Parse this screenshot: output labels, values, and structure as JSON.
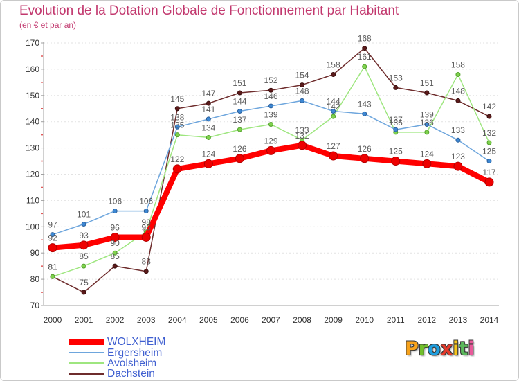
{
  "chart_data": {
    "type": "line",
    "title": "Evolution de la Dotation Globale de Fonctionnement par Habitant",
    "subtitle": "(en € et par an)",
    "categories": [
      "2000",
      "2001",
      "2002",
      "2003",
      "2004",
      "2005",
      "2006",
      "2007",
      "2008",
      "2009",
      "2010",
      "2011",
      "2012",
      "2013",
      "2014"
    ],
    "ylim": [
      70,
      170
    ],
    "yticks": [
      70,
      80,
      90,
      100,
      110,
      120,
      130,
      140,
      150,
      160,
      170
    ],
    "grid": true,
    "legend": "bottom-left",
    "series": [
      {
        "name": "WOLXHEIM",
        "values": [
          92,
          93,
          96,
          96,
          122,
          124,
          126,
          129,
          131,
          127,
          126,
          125,
          124,
          123,
          117
        ],
        "line_color": "#ff0000",
        "marker_color": "#ee0000",
        "marker_stroke": "#b00000",
        "highlight": true
      },
      {
        "name": "Ergersheim",
        "values": [
          97,
          101,
          106,
          106,
          138,
          141,
          144,
          146,
          148,
          144,
          143,
          137,
          139,
          133,
          125
        ],
        "line_color": "#6ea6dd",
        "marker_color": "#3d88d4",
        "marker_stroke": "#2b5f9a",
        "highlight": false
      },
      {
        "name": "Avolsheim",
        "values": [
          81,
          85,
          90,
          98,
          135,
          134,
          137,
          139,
          133,
          142,
          161,
          136,
          136,
          158,
          132
        ],
        "line_color": "#9ee67f",
        "marker_color": "#7fd24e",
        "marker_stroke": "#52a02a",
        "highlight": false
      },
      {
        "name": "Dachstein",
        "values": [
          81,
          75,
          85,
          83,
          145,
          147,
          151,
          152,
          154,
          158,
          168,
          153,
          151,
          148,
          142
        ],
        "line_color": "#6e2c2c",
        "marker_color": "#5b1a1a",
        "marker_stroke": "#3a0f0f",
        "highlight": false
      }
    ]
  },
  "colors": {
    "title": "#c2386e",
    "legend_text": "#3f5fd0",
    "axis_line": "#a0a0a0",
    "grid": "#e2e2e2",
    "tick_accent": "#e05a5a"
  },
  "logo": {
    "letters": [
      {
        "char": "P",
        "color": "#f7a21b"
      },
      {
        "char": "r",
        "color": "#72c02c"
      },
      {
        "char": "o",
        "color": "#1e9fe0"
      },
      {
        "char": "x",
        "color": "#e53a2b"
      },
      {
        "char": "i",
        "color": "#f7c51b"
      },
      {
        "char": "t",
        "color": "#5cb85c"
      },
      {
        "char": "i",
        "color": "#e85a9a"
      }
    ]
  }
}
